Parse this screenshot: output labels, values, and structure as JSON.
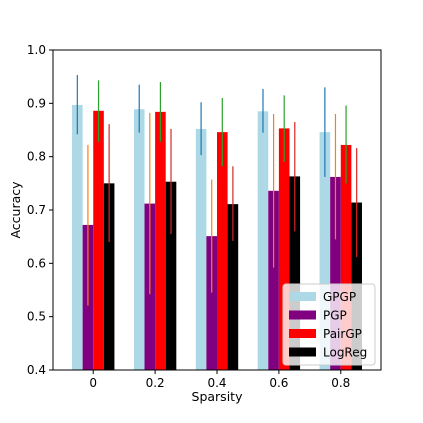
{
  "chart_data": {
    "type": "bar",
    "xlabel": "Sparsity",
    "ylabel": "Accuracy",
    "categories": [
      "0",
      "0.2",
      "0.4",
      "0.6",
      "0.8"
    ],
    "ylim": [
      0.4,
      1.0
    ],
    "yticks": [
      "0.4",
      "0.5",
      "0.6",
      "0.7",
      "0.8",
      "0.9",
      "1.0"
    ],
    "grid": false,
    "legend_position": "bottom-right",
    "series": [
      {
        "name": "GPGP",
        "color": "#add8e6",
        "error_color": "#1f77b4",
        "values": [
          0.897,
          0.889,
          0.852,
          0.885,
          0.846
        ],
        "err_low": [
          0.842,
          0.845,
          0.803,
          0.845,
          0.762
        ],
        "err_high": [
          0.953,
          0.935,
          0.902,
          0.927,
          0.93
        ]
      },
      {
        "name": "PGP",
        "color": "#800080",
        "error_color": "#ff7f0e",
        "values": [
          0.672,
          0.712,
          0.651,
          0.736,
          0.762
        ],
        "err_low": [
          0.521,
          0.542,
          0.545,
          0.592,
          0.645
        ],
        "err_high": [
          0.822,
          0.882,
          0.757,
          0.88,
          0.88
        ]
      },
      {
        "name": "PairGP",
        "color": "#ff0000",
        "error_color": "#2ca02c",
        "values": [
          0.886,
          0.884,
          0.846,
          0.853,
          0.822
        ],
        "err_low": [
          0.828,
          0.828,
          0.782,
          0.79,
          0.75
        ],
        "err_high": [
          0.943,
          0.94,
          0.91,
          0.915,
          0.896
        ]
      },
      {
        "name": "LogReg",
        "color": "#000000",
        "error_color": "#d62728",
        "values": [
          0.75,
          0.753,
          0.711,
          0.763,
          0.714
        ],
        "err_low": [
          0.64,
          0.655,
          0.642,
          0.66,
          0.612
        ],
        "err_high": [
          0.861,
          0.852,
          0.782,
          0.865,
          0.816
        ]
      }
    ]
  }
}
